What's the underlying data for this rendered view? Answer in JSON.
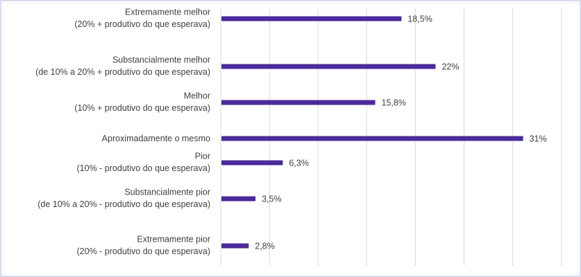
{
  "chart_data": {
    "type": "bar",
    "orientation": "horizontal",
    "categories": [
      [
        "Extremamente melhor",
        "(20% + produtivo do que esperava)"
      ],
      [
        "Substancialmente melhor",
        "(de 10% a 20% + produtivo do que esperava)"
      ],
      [
        "Melhor",
        "(10% + produtivo do que esperava)"
      ],
      [
        "Aproximadamente o mesmo"
      ],
      [
        "Pior",
        "(10% - produtivo do que esperava)"
      ],
      [
        "Substancialmente pior",
        "(de 10% a 20% - produtivo do que esperava)"
      ],
      [
        "Extremamente pior",
        "(20% - produtivo do que esperava)"
      ]
    ],
    "values": [
      18.5,
      22,
      15.8,
      31,
      6.3,
      3.5,
      2.8
    ],
    "value_labels": [
      "18,5%",
      "22%",
      "15,8%",
      "31%",
      "6,3%",
      "3,5%",
      "2,8%"
    ],
    "xlim": [
      0,
      35
    ],
    "grid": true,
    "colors": {
      "bar": "#4b2a9b",
      "grid": "#d9d9d9",
      "text": "#404040"
    }
  }
}
